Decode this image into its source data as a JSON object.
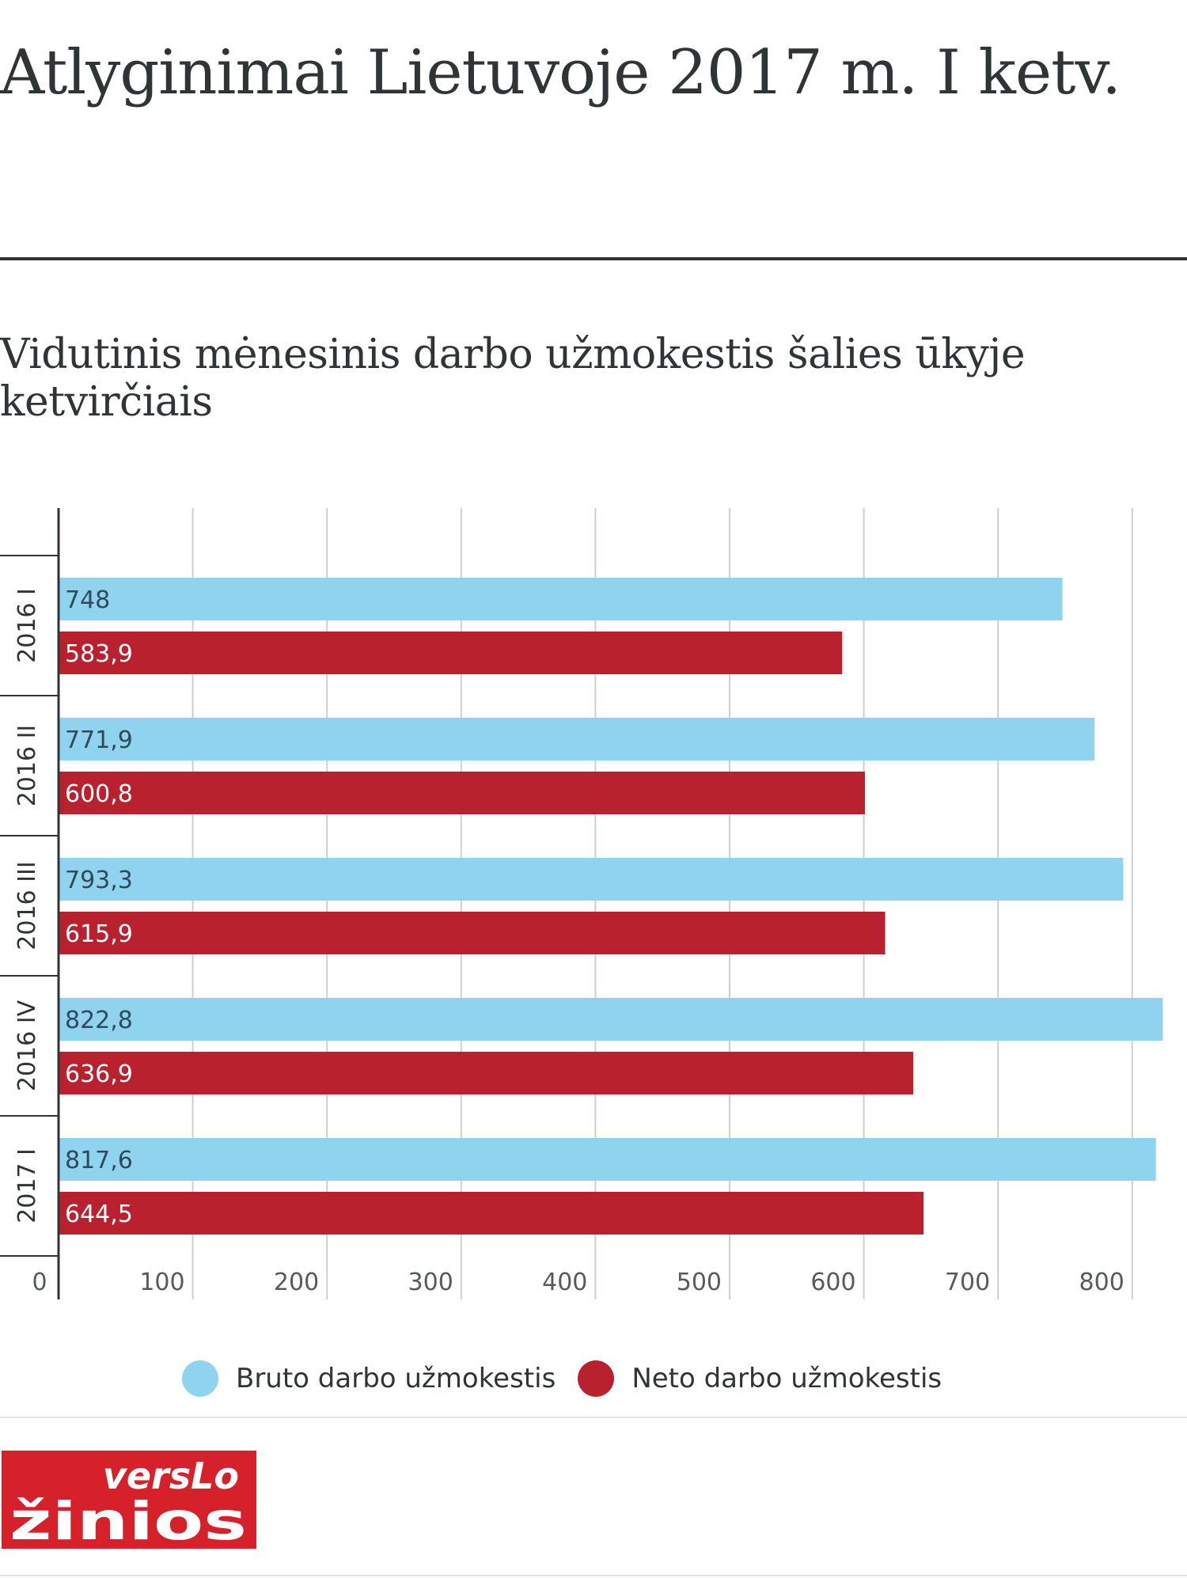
{
  "header": {
    "title": "Atlyginimai Lietuvoje 2017 m. I ketv.",
    "subtitle": "Vidutinis mėnesinis darbo užmokestis šalies ūkyje ketvirčiais"
  },
  "colors": {
    "bruto": "#8fd3ee",
    "neto": "#b8212d",
    "grid": "#cfcfcf",
    "axis": "#2f3437",
    "logo_red": "#d6202a"
  },
  "chart_data": {
    "type": "bar",
    "orientation": "horizontal",
    "categories": [
      "2016 I",
      "2016 II",
      "2016 III",
      "2016 IV",
      "2017 I"
    ],
    "series": [
      {
        "name": "Bruto darbo užmokestis",
        "values": [
          748,
          771.9,
          793.3,
          822.8,
          817.6
        ],
        "labels": [
          "748",
          "771,9",
          "793,3",
          "822,8",
          "817,6"
        ]
      },
      {
        "name": "Neto darbo užmokestis",
        "values": [
          583.9,
          600.8,
          615.9,
          636.9,
          644.5
        ],
        "labels": [
          "583,9",
          "600,8",
          "615,9",
          "636,9",
          "644,5"
        ]
      }
    ],
    "xticks": [
      0,
      100,
      200,
      300,
      400,
      500,
      600,
      700,
      800
    ],
    "xlim": [
      0,
      830
    ],
    "grid": true,
    "legend_position": "bottom"
  },
  "footer": {
    "logo": {
      "line1": "versLo",
      "line2": "žinios"
    }
  }
}
